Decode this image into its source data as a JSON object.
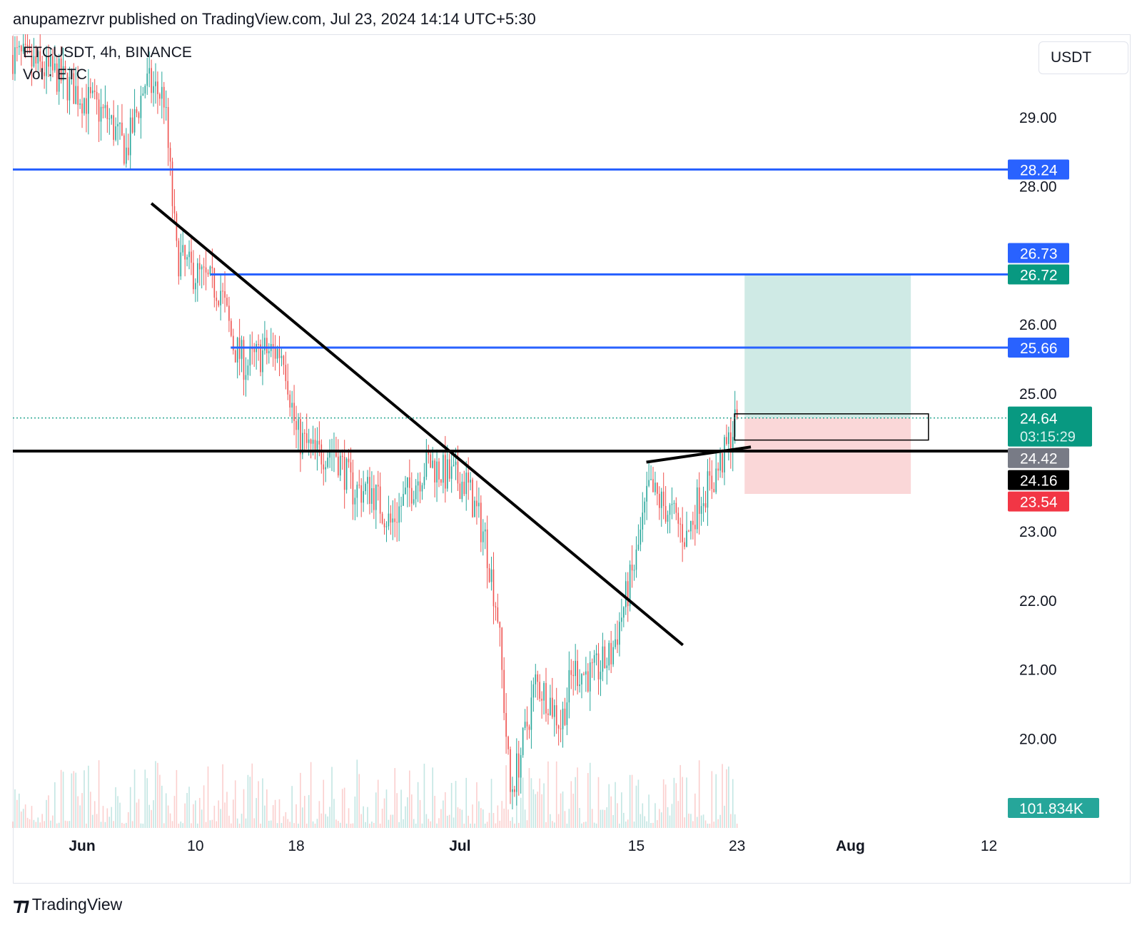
{
  "header": {
    "published_line": "anupamezrvr published on TradingView.com, Jul 23, 2024 14:14 UTC+5:30"
  },
  "legend": {
    "symbol_line": "ETCUSDT, 4h, BINANCE",
    "volume_line": "Vol · ETC"
  },
  "toolbar": {
    "currency": "USDT"
  },
  "footer": {
    "brand": "TradingView"
  },
  "colors": {
    "up": "#26a69a",
    "down": "#ef5350",
    "blue_line": "#2962ff",
    "black_line": "#000000",
    "target_zone": "#cfeae5",
    "stop_zone": "#fad7d8",
    "price_tag_green": "#089981",
    "price_tag_gray": "#787b86",
    "price_tag_red": "#f23645"
  },
  "chart_data": {
    "type": "candlestick",
    "symbol": "ETCUSDT",
    "interval": "4h",
    "exchange": "BINANCE",
    "y_axis": {
      "ticks": [
        "29.00",
        "28.00",
        "26.00",
        "25.00",
        "23.00",
        "22.00",
        "21.00",
        "20.00"
      ],
      "tick_values": [
        29,
        28,
        26,
        25,
        23,
        22,
        21,
        20
      ],
      "range": [
        18.7,
        30.2
      ]
    },
    "x_axis": {
      "ticks": [
        {
          "label": "Jun",
          "day": 1
        },
        {
          "label": "10",
          "day": 10
        },
        {
          "label": "18",
          "day": 18
        },
        {
          "label": "Jul",
          "day": 31
        },
        {
          "label": "15",
          "day": 45
        },
        {
          "label": "23",
          "day": 53
        },
        {
          "label": "Aug",
          "day": 62
        },
        {
          "label": "12",
          "day": 73
        }
      ],
      "range_days": [
        -4.5,
        74.5
      ]
    },
    "price_path": [
      [
        -4.5,
        29.9
      ],
      [
        -1,
        29.6
      ],
      [
        1,
        29.3
      ],
      [
        3,
        29.0
      ],
      [
        4.5,
        28.5
      ],
      [
        6,
        29.5
      ],
      [
        7.5,
        29.3
      ],
      [
        8.5,
        27.0
      ],
      [
        9.5,
        26.8
      ],
      [
        11,
        26.6
      ],
      [
        12,
        26.5
      ],
      [
        13,
        25.7
      ],
      [
        14,
        25.4
      ],
      [
        15.5,
        25.6
      ],
      [
        17,
        25.6
      ],
      [
        18,
        24.4
      ],
      [
        19.5,
        24.1
      ],
      [
        21,
        24.2
      ],
      [
        22.5,
        23.6
      ],
      [
        24,
        23.6
      ],
      [
        25.5,
        23.1
      ],
      [
        27,
        23.6
      ],
      [
        28.5,
        24.0
      ],
      [
        30,
        23.8
      ],
      [
        31.5,
        23.7
      ],
      [
        33,
        22.9
      ],
      [
        34,
        21.8
      ],
      [
        35,
        19.2
      ],
      [
        36,
        19.9
      ],
      [
        37,
        20.8
      ],
      [
        38,
        20.6
      ],
      [
        39,
        20.2
      ],
      [
        40,
        21.0
      ],
      [
        41.5,
        20.9
      ],
      [
        43,
        21.2
      ],
      [
        44,
        21.9
      ],
      [
        45,
        22.6
      ],
      [
        46,
        23.6
      ],
      [
        47,
        23.4
      ],
      [
        48,
        23.2
      ],
      [
        49,
        22.9
      ],
      [
        50,
        23.5
      ],
      [
        51,
        23.7
      ],
      [
        52,
        24.1
      ],
      [
        53,
        24.64
      ]
    ],
    "horizontal_lines": [
      {
        "price": 28.24,
        "color": "#2962ff",
        "start_day": -4.5
      },
      {
        "price": 26.72,
        "color": "#2962ff",
        "start_day": 11.2
      },
      {
        "price": 25.66,
        "color": "#2962ff",
        "start_day": 12.8
      },
      {
        "price": 24.16,
        "color": "#000000",
        "start_day": -4.5
      }
    ],
    "trend_lines": [
      {
        "from": [
          6.5,
          27.75
        ],
        "to": [
          48.7,
          21.35
        ],
        "color": "#000000"
      },
      {
        "from": [
          45.8,
          24.0
        ],
        "to": [
          54.1,
          24.22
        ],
        "color": "#000000"
      }
    ],
    "position_tool": {
      "start_day": 53.6,
      "end_day": 66.8,
      "entry": 24.64,
      "target": 26.72,
      "stop": 23.54
    },
    "entry_box": {
      "start_day": 52.8,
      "end_day": 68.2,
      "top": 24.7,
      "bottom": 24.32
    },
    "current_price": 24.64,
    "countdown": "03:15:29",
    "price_labels": [
      {
        "text": "28.24",
        "price": 28.24,
        "color": "#2962ff"
      },
      {
        "text": "26.73",
        "price": 27.03,
        "color": "#2962ff"
      },
      {
        "text": "26.72",
        "price": 26.72,
        "color": "#089981"
      },
      {
        "text": "25.66",
        "price": 25.66,
        "color": "#2962ff"
      },
      {
        "text": "24.42",
        "price": 24.06,
        "color": "#787b86"
      },
      {
        "text": "24.16",
        "price": 23.74,
        "color": "#000000"
      },
      {
        "text": "23.54",
        "price": 23.43,
        "color": "#f23645"
      }
    ],
    "volume_label": "101.834K",
    "volume_max": 101834
  }
}
